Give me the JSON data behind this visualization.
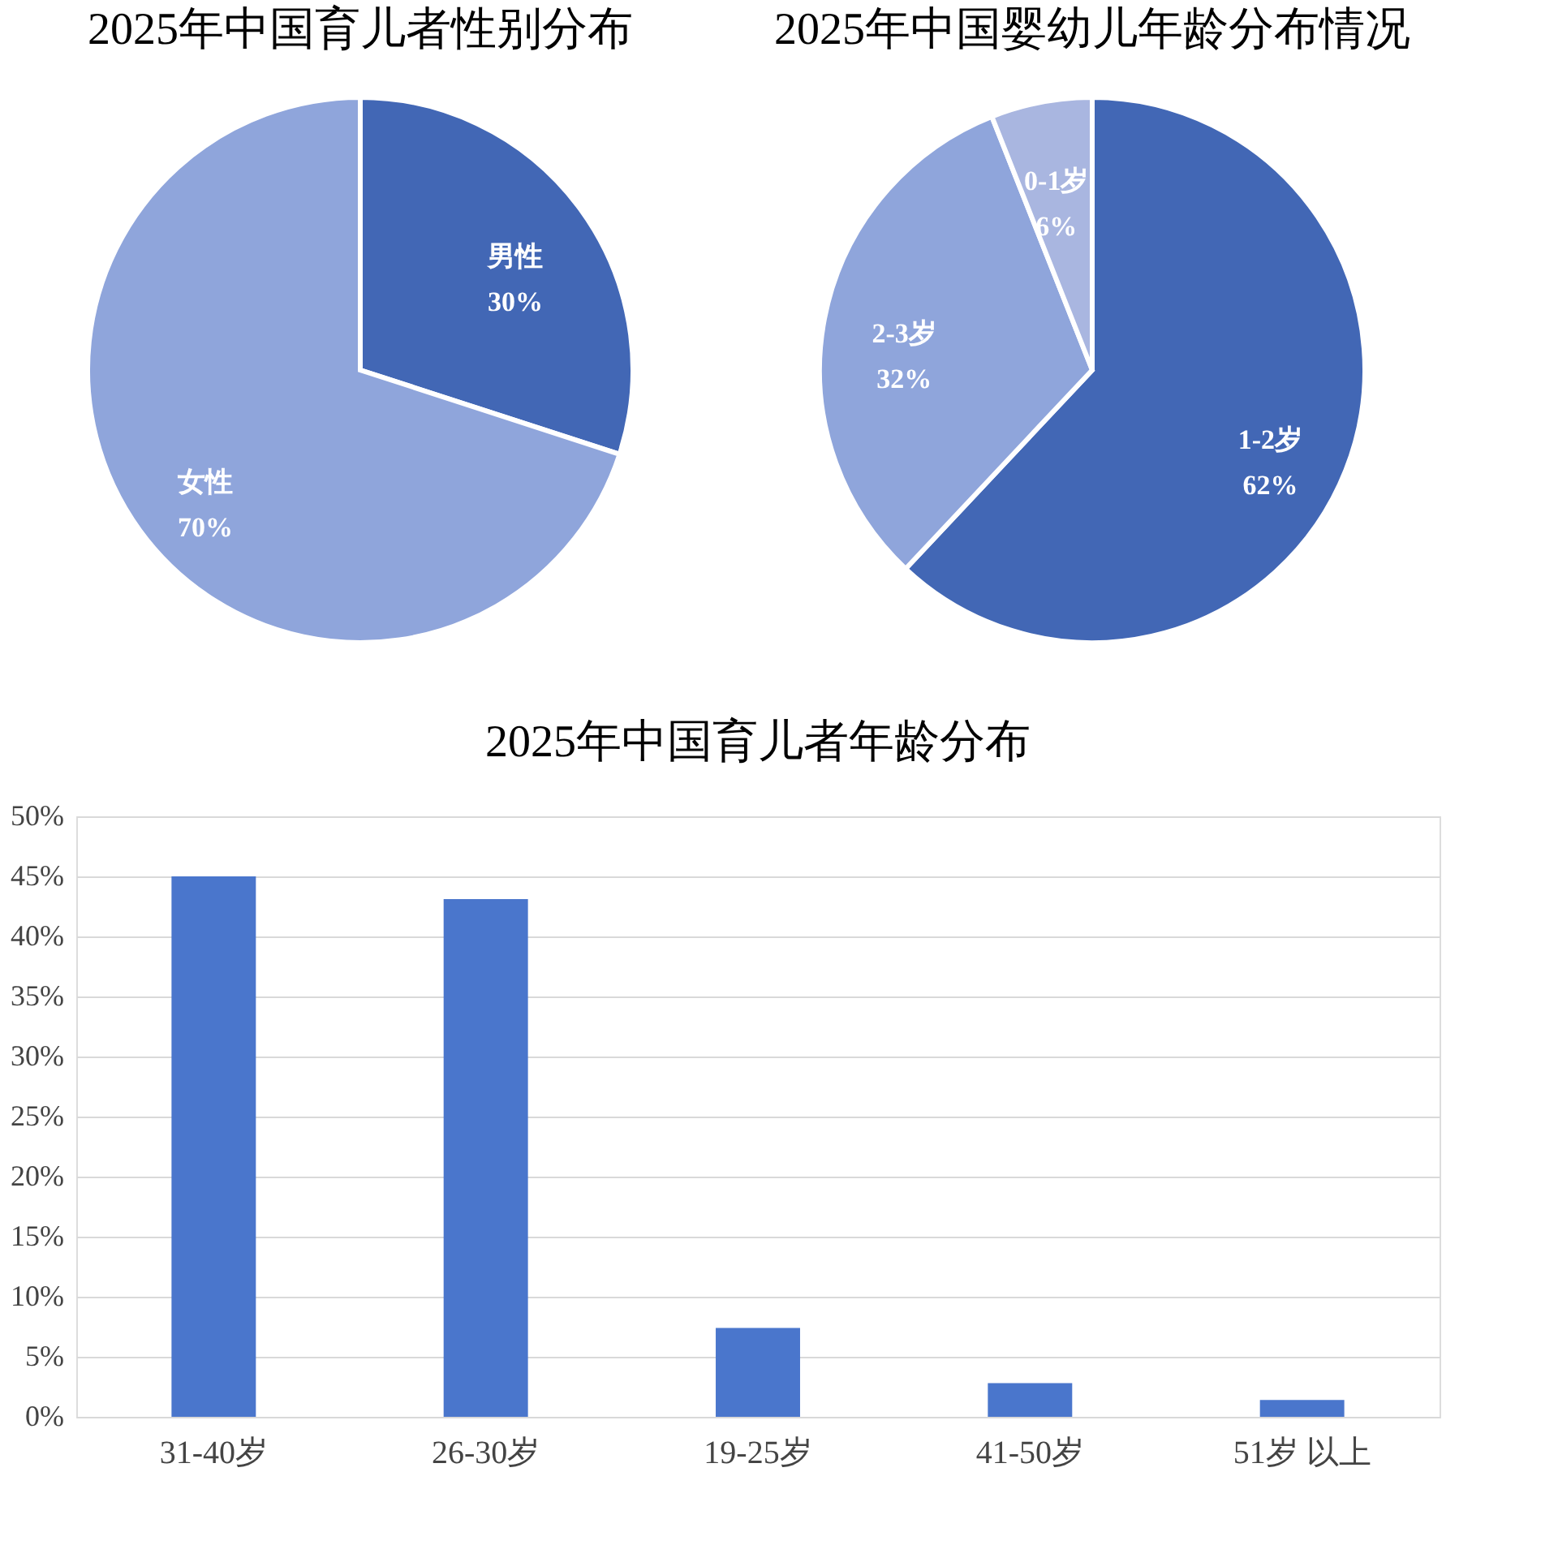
{
  "chart_data": [
    {
      "type": "pie",
      "title": "2025年中国育儿者性别分布",
      "categories": [
        "男性",
        "女性"
      ],
      "values": [
        30,
        70
      ],
      "value_labels": [
        "30%",
        "70%"
      ],
      "colors": [
        "#4267b5",
        "#8fa5db"
      ],
      "legend": false
    },
    {
      "type": "pie",
      "title": "2025年中国婴幼儿年龄分布情况",
      "categories": [
        "1-2岁",
        "2-3岁",
        "0-1岁"
      ],
      "values": [
        62,
        32,
        6
      ],
      "value_labels": [
        "62%",
        "32%",
        "6%"
      ],
      "colors": [
        "#4267b5",
        "#8fa5db",
        "#a9b6e0"
      ],
      "legend": false
    },
    {
      "type": "bar",
      "title": "2025年中国育儿者年龄分布",
      "categories": [
        "31-40岁",
        "26-30岁",
        "19-25岁",
        "41-50岁",
        "51岁 以上"
      ],
      "values": [
        45,
        43.1,
        7.4,
        2.8,
        1.4
      ],
      "color": "#4a76cc",
      "ylim": [
        0,
        50
      ],
      "yticks": [
        {
          "value": 0,
          "label": "0%"
        },
        {
          "value": 5,
          "label": "5%"
        },
        {
          "value": 10,
          "label": "10%"
        },
        {
          "value": 15,
          "label": "15%"
        },
        {
          "value": 20,
          "label": "20%"
        },
        {
          "value": 25,
          "label": "25%"
        },
        {
          "value": 30,
          "label": "30%"
        },
        {
          "value": 35,
          "label": "35%"
        },
        {
          "value": 40,
          "label": "40%"
        },
        {
          "value": 45,
          "label": "45%"
        },
        {
          "value": 50,
          "label": "50%"
        }
      ],
      "grid": "y"
    }
  ]
}
